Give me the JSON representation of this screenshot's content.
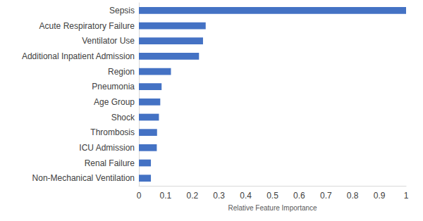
{
  "chart_data": {
    "type": "bar",
    "orientation": "horizontal",
    "categories": [
      "Sepsis",
      "Acute Respiratory Failure",
      "Ventilator Use",
      "Additional Inpatient Admission",
      "Region",
      "Pneumonia",
      "Age Group",
      "Shock",
      "Thrombosis",
      "ICU Admission",
      "Renal Failure",
      "Non-Mechanical Ventilation"
    ],
    "values": [
      1.0,
      0.25,
      0.24,
      0.225,
      0.12,
      0.085,
      0.08,
      0.075,
      0.068,
      0.067,
      0.045,
      0.045
    ],
    "color": "#4472c4",
    "x_label": "Relative Feature Importance",
    "xlim": [
      0,
      1
    ],
    "xticks": [
      0,
      0.1,
      0.2,
      0.3,
      0.4,
      0.5,
      0.6,
      0.7,
      0.8,
      0.9,
      1
    ],
    "grid": false
  }
}
